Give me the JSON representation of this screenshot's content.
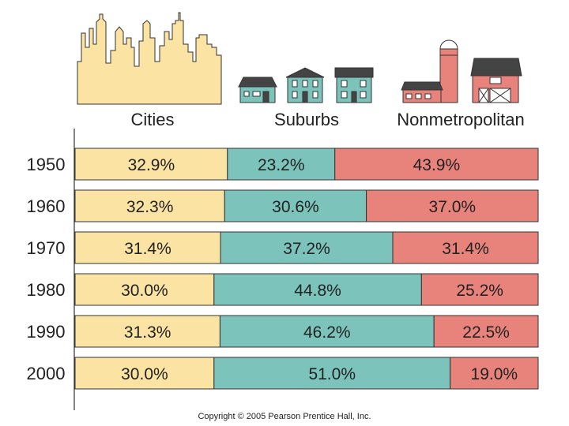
{
  "chart_data": {
    "type": "bar",
    "stacked": true,
    "orientation": "horizontal",
    "categories": [
      "1950",
      "1960",
      "1970",
      "1980",
      "1990",
      "2000"
    ],
    "series": [
      {
        "name": "Cities",
        "color": "#fbe3a3",
        "values": [
          32.9,
          32.3,
          31.4,
          30.0,
          31.3,
          30.0
        ]
      },
      {
        "name": "Suburbs",
        "color": "#7cc3bc",
        "values": [
          23.2,
          30.6,
          37.2,
          44.8,
          46.2,
          51.0
        ]
      },
      {
        "name": "Nonmetropolitan",
        "color": "#e8837c",
        "values": [
          43.9,
          37.0,
          31.4,
          25.2,
          22.5,
          19.0
        ]
      }
    ],
    "value_suffix": "%",
    "xlim": [
      0,
      100
    ],
    "title": "",
    "xlabel": "",
    "ylabel": ""
  },
  "footer": {
    "copyright": "Copyright © 2005 Pearson Prentice Hall, Inc."
  },
  "icons": [
    "city-skyline-icon",
    "suburban-houses-icon",
    "farm-icon"
  ]
}
